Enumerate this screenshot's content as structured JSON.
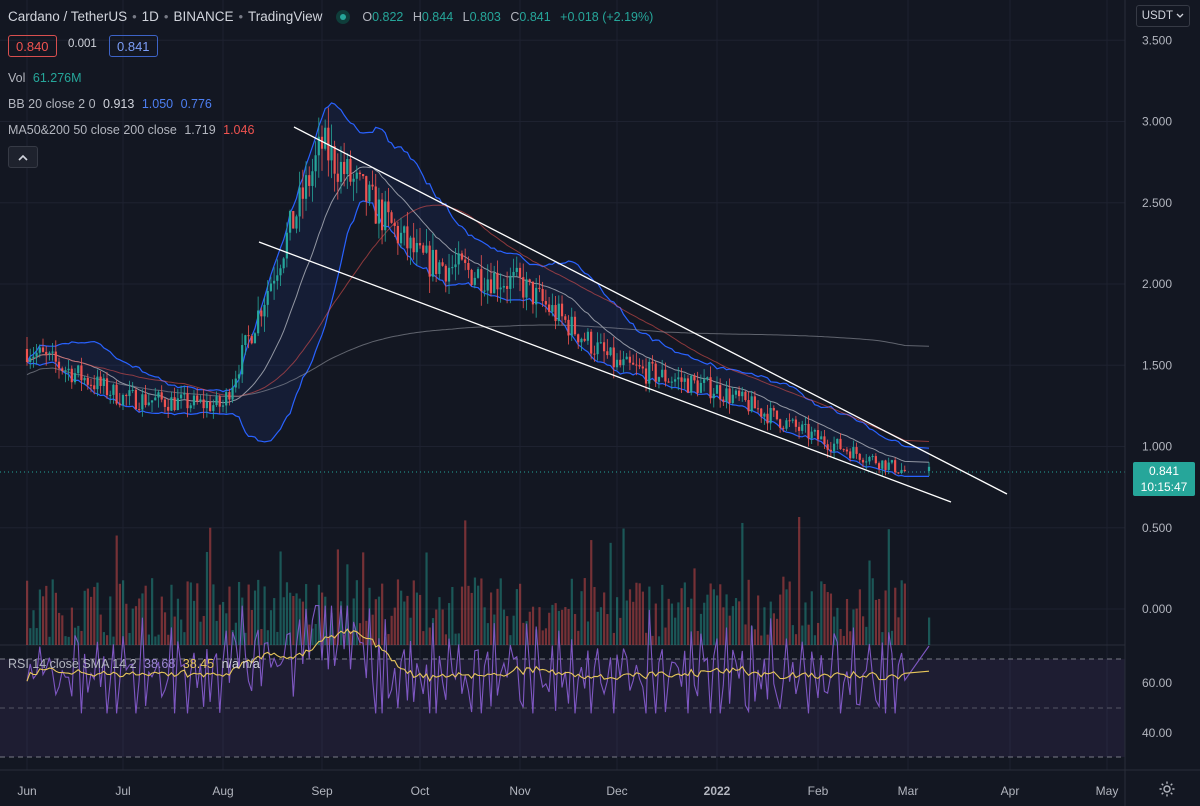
{
  "header": {
    "symbol": "Cardano / TetherUS",
    "interval": "1D",
    "exchange": "BINANCE",
    "source": "TradingView",
    "open": "0.822",
    "high": "0.844",
    "low": "0.803",
    "close": "0.841",
    "change": "+0.018 (+2.19%)",
    "sell_price": "0.840",
    "spread": "0.001",
    "buy_price": "0.841"
  },
  "indicators": {
    "vol_label": "Vol",
    "vol_value": "61.276M",
    "bb_label": "BB 20 close 2 0",
    "bb_mid": "0.913",
    "bb_upper": "1.050",
    "bb_lower": "0.776",
    "ma_label": "MA50&200 50 close 200 close",
    "ma50": "1.719",
    "ma200": "1.046",
    "rsi_label": "RSI 14 close SMA 14 2",
    "rsi_value": "38.68",
    "rsi_sma": "38.45",
    "rsi_extra": "n/a n/a"
  },
  "currency": "USDT",
  "last_price": "0.841",
  "countdown": "10:15:47",
  "colors": {
    "up": "#26a69a",
    "down": "#ef5350",
    "bb": "#2962ff",
    "rsi": "#7e57c2",
    "rsi_sma": "#e7c65a"
  },
  "icons": [
    "chevron-up-icon",
    "chevron-down-icon",
    "settings-gear-icon"
  ],
  "chart_data": {
    "type": "candlestick",
    "y_ticks": [
      "3.500",
      "3.000",
      "2.500",
      "2.000",
      "1.500",
      "1.000",
      "0.500",
      "0.000"
    ],
    "rsi_ticks": [
      "60.00",
      "40.00"
    ],
    "x_ticks": [
      "Jun",
      "Jul",
      "Aug",
      "Sep",
      "Oct",
      "Nov",
      "Dec",
      "2022",
      "Feb",
      "Mar",
      "Apr",
      "May"
    ],
    "ylim": [
      0,
      3.5
    ],
    "key_points": [
      {
        "x": "Jun",
        "y": 1.6
      },
      {
        "x": "Jul",
        "y": 1.3
      },
      {
        "x": "Aug",
        "y": 1.25
      },
      {
        "x": "Sep",
        "y": 2.85
      },
      {
        "x": "Oct",
        "y": 2.15
      },
      {
        "x": "Nov",
        "y": 2.0
      },
      {
        "x": "Dec",
        "y": 1.5
      },
      {
        "x": "2022",
        "y": 1.35
      },
      {
        "x": "Feb",
        "y": 1.05
      },
      {
        "x": "Mar",
        "y": 0.84
      }
    ]
  }
}
